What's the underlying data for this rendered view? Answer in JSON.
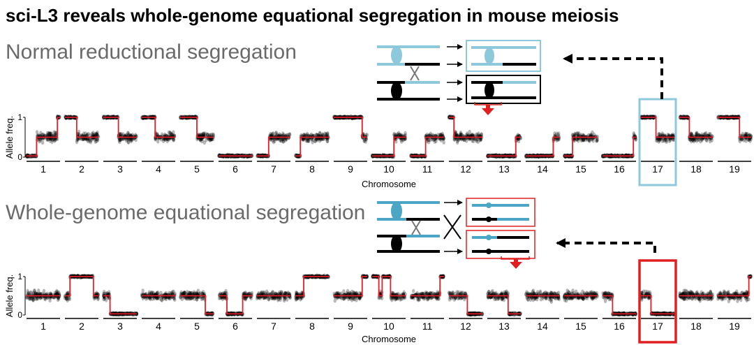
{
  "title": "sci-L3 reveals whole-genome equational segregation in mouse meiosis",
  "colors": {
    "normal": "#8ec8db",
    "equational": "#e02020",
    "fit": "#e0202a",
    "dots": "#000000"
  },
  "chart_data": [
    {
      "type": "scatter",
      "panel_title": "Normal reductional segregation",
      "xlabel": "Chromosome",
      "ylabel": "Allele freq.",
      "yticks": [
        "0",
        "1"
      ],
      "ylim": [
        0,
        1
      ],
      "highlight": "17",
      "chromosomes": [
        {
          "label": "1",
          "segments": [
            [
              0,
              0.03
            ],
            [
              0.3,
              0.5
            ],
            [
              0.92,
              1.0
            ]
          ]
        },
        {
          "label": "2",
          "segments": [
            [
              0,
              1.0
            ],
            [
              0.35,
              0.5
            ]
          ]
        },
        {
          "label": "3",
          "segments": [
            [
              0,
              1.0
            ],
            [
              0.45,
              0.5
            ]
          ]
        },
        {
          "label": "4",
          "segments": [
            [
              0,
              1.0
            ],
            [
              0.4,
              0.5
            ]
          ]
        },
        {
          "label": "5",
          "segments": [
            [
              0,
              1.0
            ],
            [
              0.5,
              0.5
            ]
          ]
        },
        {
          "label": "6",
          "segments": [
            [
              0,
              0.03
            ]
          ]
        },
        {
          "label": "7",
          "segments": [
            [
              0,
              0.03
            ],
            [
              0.35,
              0.5
            ]
          ]
        },
        {
          "label": "8",
          "segments": [
            [
              0,
              0.03
            ],
            [
              0.15,
              0.5
            ]
          ]
        },
        {
          "label": "9",
          "segments": [
            [
              0,
              1.0
            ],
            [
              0.85,
              0.5
            ]
          ]
        },
        {
          "label": "10",
          "segments": [
            [
              0,
              0.03
            ],
            [
              0.65,
              0.5
            ]
          ]
        },
        {
          "label": "11",
          "segments": [
            [
              0,
              0.03
            ],
            [
              0.45,
              0.5
            ]
          ]
        },
        {
          "label": "12",
          "segments": [
            [
              0,
              1.0
            ],
            [
              0.15,
              0.5
            ]
          ]
        },
        {
          "label": "13",
          "segments": [
            [
              0,
              0.03
            ],
            [
              0.85,
              0.5
            ]
          ]
        },
        {
          "label": "14",
          "segments": [
            [
              0,
              0.03
            ],
            [
              0.82,
              0.5
            ]
          ]
        },
        {
          "label": "15",
          "segments": [
            [
              0,
              0.03
            ],
            [
              0.25,
              0.5
            ]
          ]
        },
        {
          "label": "16",
          "segments": [
            [
              0,
              0.03
            ],
            [
              0.92,
              0.5
            ]
          ]
        },
        {
          "label": "17",
          "segments": [
            [
              0,
              1.0
            ],
            [
              0.45,
              0.5
            ]
          ]
        },
        {
          "label": "18",
          "segments": [
            [
              0,
              1.0
            ],
            [
              0.3,
              0.5
            ]
          ]
        },
        {
          "label": "19",
          "segments": [
            [
              0,
              1.0
            ],
            [
              0.65,
              0.5
            ]
          ]
        }
      ]
    },
    {
      "type": "scatter",
      "panel_title": "Whole-genome equational segregation",
      "xlabel": "Chromosome",
      "ylabel": "Allele freq.",
      "yticks": [
        "0",
        "1"
      ],
      "ylim": [
        0,
        1
      ],
      "highlight": "17",
      "chromosomes": [
        {
          "label": "1",
          "segments": [
            [
              0,
              0.5
            ]
          ]
        },
        {
          "label": "2",
          "segments": [
            [
              0,
              0.5
            ],
            [
              0.15,
              1.0
            ],
            [
              0.85,
              0.5
            ]
          ]
        },
        {
          "label": "3",
          "segments": [
            [
              0,
              0.5
            ],
            [
              0.2,
              0.03
            ]
          ]
        },
        {
          "label": "4",
          "segments": [
            [
              0,
              0.5
            ]
          ]
        },
        {
          "label": "5",
          "segments": [
            [
              0,
              0.5
            ],
            [
              0.75,
              0.03
            ]
          ]
        },
        {
          "label": "6",
          "segments": [
            [
              0,
              0.5
            ],
            [
              0.25,
              0.03
            ],
            [
              0.72,
              0.5
            ]
          ]
        },
        {
          "label": "7",
          "segments": [
            [
              0,
              0.5
            ]
          ]
        },
        {
          "label": "8",
          "segments": [
            [
              0,
              0.5
            ],
            [
              0.25,
              1.0
            ]
          ]
        },
        {
          "label": "9",
          "segments": [
            [
              0,
              0.5
            ],
            [
              0.85,
              1.0
            ]
          ]
        },
        {
          "label": "10",
          "segments": [
            [
              0,
              1.0
            ],
            [
              0.2,
              0.5
            ],
            [
              0.3,
              1.0
            ],
            [
              0.55,
              0.5
            ]
          ]
        },
        {
          "label": "11",
          "segments": [
            [
              0,
              0.5
            ],
            [
              0.88,
              1.0
            ]
          ]
        },
        {
          "label": "12",
          "segments": [
            [
              0,
              0.5
            ],
            [
              0.55,
              0.03
            ]
          ]
        },
        {
          "label": "13",
          "segments": [
            [
              0,
              0.5
            ],
            [
              0.62,
              0.03
            ]
          ]
        },
        {
          "label": "14",
          "segments": [
            [
              0,
              0.5
            ]
          ]
        },
        {
          "label": "15",
          "segments": [
            [
              0,
              0.5
            ]
          ]
        },
        {
          "label": "16",
          "segments": [
            [
              0,
              0.5
            ],
            [
              0.3,
              0.03
            ]
          ]
        },
        {
          "label": "17",
          "segments": [
            [
              0,
              0.5
            ],
            [
              0.3,
              0.03
            ]
          ]
        },
        {
          "label": "18",
          "segments": [
            [
              0,
              0.5
            ]
          ]
        },
        {
          "label": "19",
          "segments": [
            [
              0,
              0.5
            ],
            [
              0.93,
              1.0
            ]
          ]
        }
      ]
    }
  ]
}
